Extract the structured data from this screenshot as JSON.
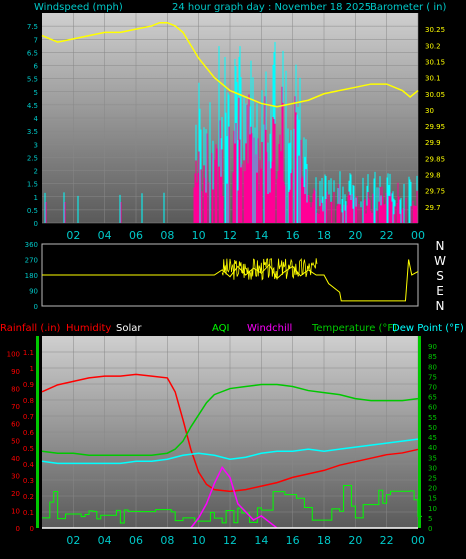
{
  "header": {
    "left_title": "Windspeed (mph)",
    "center_title": "24 hour graph day : November 18 2025",
    "right_title": "Barometer ( in)"
  },
  "direction_labels": [
    "N",
    "W",
    "S",
    "E",
    "N"
  ],
  "bottom_legend": {
    "rainfall": "Rainfall (.in)",
    "humidity": "Humidity",
    "solar": "Solar",
    "aqi": "AQI",
    "windchill": "Windchill",
    "temperature": "Temperature (°F)",
    "dewpoint": "Dew Point (°F)"
  },
  "colors": {
    "header_text": "#00c8c8",
    "gust": "#00ffff",
    "wind": "#ff0096",
    "barometer": "#ffff00",
    "direction": "#ffff00",
    "humidity": "#ff0000",
    "solar": "#ffffff",
    "aqi": "#00ff00",
    "windchill": "#ff00ff",
    "temperature": "#00c800",
    "dewpoint": "#00ffff",
    "left_axis_red": "#ff0000",
    "right_axis_green": "#00c800",
    "bg_plot_top": "#c8c8c8",
    "bg_plot_bottom": "#5a5a5a"
  },
  "chart_data": [
    {
      "type": "line",
      "title": "24 hour graph day : November 18 2025",
      "x_ticks": [
        "02",
        "04",
        "06",
        "08",
        "10",
        "12",
        "14",
        "16",
        "18",
        "20",
        "22",
        "00"
      ],
      "left_axis": {
        "label": "Windspeed (mph)",
        "range": [
          0,
          8
        ],
        "ticks": [
          "0",
          "0.5",
          "1",
          "1.5",
          "2",
          "2.5",
          "3",
          "3.5",
          "4",
          "4.5",
          "5",
          "5.5",
          "6",
          "6.5",
          "7",
          "7.5"
        ]
      },
      "right_axis": {
        "label": "Barometer ( in)",
        "range": [
          29.65,
          30.3
        ],
        "ticks": [
          "29.7",
          "29.75",
          "29.8",
          "29.85",
          "29.9",
          "29.95",
          "30",
          "30.05",
          "30.1",
          "30.15",
          "30.2",
          "30.25"
        ]
      },
      "series": [
        {
          "name": "Barometer",
          "axis": "right",
          "x": [
            0,
            0.5,
            1,
            2,
            3,
            4,
            5,
            6,
            7,
            7.5,
            8,
            8.5,
            9,
            10,
            11,
            12,
            13,
            14,
            15,
            16,
            17,
            18,
            19,
            20,
            21,
            22,
            23,
            23.5,
            24
          ],
          "y": [
            30.23,
            30.22,
            30.21,
            30.22,
            30.23,
            30.24,
            30.24,
            30.25,
            30.26,
            30.27,
            30.27,
            30.26,
            30.24,
            30.16,
            30.1,
            30.06,
            30.04,
            30.02,
            30.01,
            30.02,
            30.03,
            30.05,
            30.06,
            30.07,
            30.08,
            30.08,
            30.06,
            30.04,
            30.06
          ]
        }
      ]
    },
    {
      "type": "line",
      "title": "",
      "left_axis": {
        "range": [
          0,
          360
        ],
        "ticks": [
          "0",
          "90",
          "180",
          "270",
          "360"
        ]
      },
      "right_labels": [
        "N",
        "W",
        "S",
        "E",
        "N"
      ],
      "series": [
        {
          "name": "Wind direction",
          "x": [
            0,
            11,
            11.5,
            12,
            12.5,
            13,
            13.5,
            14,
            14.5,
            15,
            15.5,
            16,
            16.5,
            17,
            17.5,
            18,
            18.3,
            19,
            19.1,
            23.2,
            23.4,
            23.6,
            24
          ],
          "y": [
            180,
            180,
            210,
            170,
            230,
            180,
            220,
            190,
            240,
            160,
            200,
            230,
            175,
            210,
            180,
            180,
            130,
            80,
            30,
            30,
            270,
            180,
            200
          ]
        }
      ]
    },
    {
      "type": "line",
      "title": "",
      "x_ticks": [
        "02",
        "04",
        "06",
        "08",
        "10",
        "12",
        "14",
        "16",
        "18",
        "20",
        "22",
        "00"
      ],
      "left_axis": {
        "label": "Rainfall (.in)",
        "range": [
          0,
          1.2
        ],
        "ticks": [
          "0",
          "0.1",
          "0.2",
          "0.3",
          "0.4",
          "0.5",
          "0.6",
          "0.7",
          "0.8",
          "0.9",
          "1",
          "1.1"
        ],
        "humidity_ticks": [
          "0",
          "10",
          "20",
          "30",
          "40",
          "50",
          "60",
          "70",
          "80",
          "90",
          "100"
        ]
      },
      "right_axis": {
        "label": "Temperature (°F)",
        "range": [
          0,
          95
        ],
        "ticks": [
          "0",
          "5",
          "10",
          "15",
          "20",
          "25",
          "30",
          "35",
          "40",
          "45",
          "50",
          "55",
          "60",
          "65",
          "70",
          "75",
          "80",
          "85",
          "90"
        ]
      },
      "series": [
        {
          "name": "Humidity",
          "axis": "humidity",
          "x": [
            0,
            1,
            2,
            3,
            4,
            5,
            6,
            7,
            8,
            8.5,
            9,
            9.5,
            10,
            10.5,
            11,
            12,
            13,
            14,
            15,
            16,
            17,
            18,
            19,
            20,
            21,
            22,
            23,
            24
          ],
          "y": [
            78,
            82,
            84,
            86,
            87,
            87,
            88,
            87,
            86,
            78,
            62,
            45,
            32,
            25,
            22,
            21,
            22,
            24,
            26,
            29,
            31,
            33,
            36,
            38,
            40,
            42,
            43,
            45
          ]
        },
        {
          "name": "Temperature",
          "axis": "right",
          "x": [
            0,
            1,
            2,
            3,
            4,
            5,
            6,
            7,
            8,
            8.5,
            9,
            9.5,
            10,
            10.5,
            11,
            12,
            13,
            14,
            15,
            16,
            17,
            18,
            19,
            20,
            21,
            22,
            23,
            24
          ],
          "y": [
            38,
            37,
            37,
            36,
            36,
            36,
            36,
            36,
            37,
            39,
            43,
            50,
            56,
            62,
            66,
            69,
            70,
            71,
            71,
            70,
            68,
            67,
            66,
            64,
            63,
            63,
            63,
            64
          ]
        },
        {
          "name": "Dew Point",
          "axis": "right",
          "x": [
            0,
            1,
            2,
            3,
            4,
            5,
            6,
            7,
            8,
            9,
            10,
            11,
            12,
            13,
            14,
            15,
            16,
            17,
            18,
            19,
            20,
            21,
            22,
            23,
            24
          ],
          "y": [
            33,
            32,
            32,
            32,
            32,
            32,
            33,
            33,
            34,
            36,
            37,
            36,
            34,
            35,
            37,
            38,
            38,
            39,
            38,
            39,
            40,
            41,
            42,
            43,
            44
          ]
        },
        {
          "name": "Windchill",
          "axis": "right",
          "x": [
            9.5,
            10,
            10.5,
            11,
            11.5,
            12,
            12.5,
            13,
            13.5,
            14,
            14.5,
            15
          ],
          "y": [
            0,
            5,
            12,
            22,
            30,
            25,
            12,
            8,
            4,
            6,
            3,
            0
          ]
        },
        {
          "name": "Solar",
          "axis": "left",
          "x": [
            0,
            24
          ],
          "y": [
            0,
            0
          ]
        }
      ]
    }
  ]
}
